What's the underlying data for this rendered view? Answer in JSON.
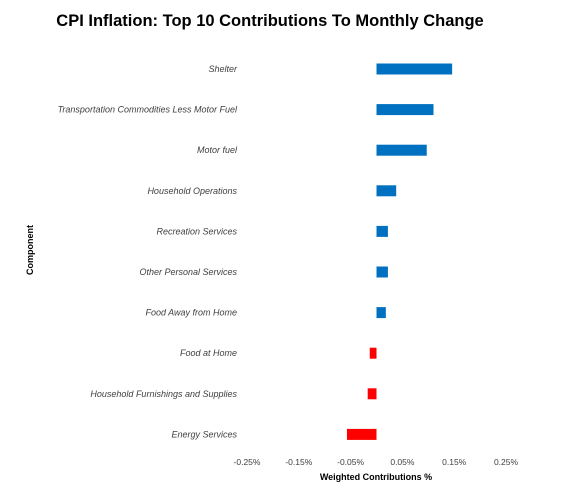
{
  "chart_data": {
    "type": "bar",
    "orientation": "horizontal",
    "title": "CPI Inflation: Top 10 Contributions To Monthly Change",
    "xlabel": "Weighted Contributions %",
    "ylabel": "Component",
    "xlim": [
      -0.25,
      0.25
    ],
    "x_ticks": [
      "-0.25%",
      "-0.15%",
      "-0.05%",
      "0.05%",
      "0.15%",
      "0.25%"
    ],
    "grid": false,
    "categories": [
      "Shelter",
      "Transportation Commodities Less Motor Fuel",
      "Motor fuel",
      "Household Operations",
      "Recreation Services",
      "Other Personal Services",
      "Food Away from Home",
      "Food at Home",
      "Household Furnishings and Supplies",
      "Energy Services"
    ],
    "values": [
      0.146,
      0.11,
      0.097,
      0.038,
      0.022,
      0.022,
      0.018,
      -0.013,
      -0.017,
      -0.057
    ],
    "colors": {
      "positive": "#0070C0",
      "negative": "#FF0000"
    }
  }
}
